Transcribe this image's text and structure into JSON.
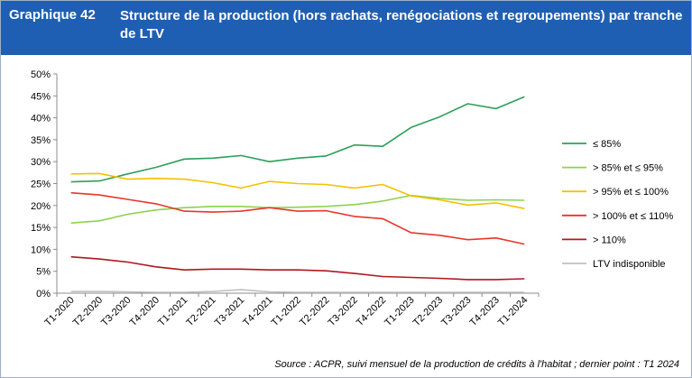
{
  "header": {
    "label": "Graphique 42",
    "title": "Structure de la production (hors rachats, renégociations et regroupements) par tranche de LTV"
  },
  "source": "Source : ACPR, suivi mensuel de la production de crédits à l'habitat ; dernier point : T1 2024",
  "chart_data": {
    "type": "line",
    "categories": [
      "T1-2020",
      "T2-2020",
      "T3-2020",
      "T4-2020",
      "T1-2021",
      "T2-2021",
      "T3-2021",
      "T4-2021",
      "T1-2022",
      "T2-2022",
      "T3-2022",
      "T4-2022",
      "T1-2023",
      "T2-2023",
      "T3-2023",
      "T4-2023",
      "T1-2024"
    ],
    "yticks": [
      "0%",
      "5%",
      "10%",
      "15%",
      "20%",
      "25%",
      "30%",
      "35%",
      "40%",
      "45%",
      "50%"
    ],
    "ylim": [
      0,
      50
    ],
    "grid": false,
    "legend_position": "right",
    "series": [
      {
        "name": "≤ 85%",
        "color": "#2ca05a",
        "values": [
          25.4,
          25.6,
          27.2,
          28.7,
          30.6,
          30.8,
          31.4,
          30.0,
          30.8,
          31.3,
          33.8,
          33.5,
          37.8,
          40.2,
          43.2,
          42.1,
          44.8
        ]
      },
      {
        "name": "> 85% et ≤ 95%",
        "color": "#8fd14f",
        "values": [
          16.0,
          16.5,
          18.0,
          19.0,
          19.5,
          19.8,
          19.8,
          19.5,
          19.6,
          19.8,
          20.2,
          21.0,
          22.3,
          21.6,
          21.2,
          21.3,
          21.2
        ]
      },
      {
        "name": "> 95% et ≤ 100%",
        "color": "#f2c200",
        "values": [
          27.2,
          27.3,
          26.0,
          26.2,
          26.0,
          25.2,
          24.0,
          25.5,
          25.0,
          24.8,
          24.0,
          24.8,
          22.2,
          21.3,
          20.1,
          20.6,
          19.3
        ]
      },
      {
        "name": "> 100% et ≤ 110%",
        "color": "#e8362a",
        "values": [
          22.9,
          22.4,
          21.4,
          20.4,
          18.7,
          18.5,
          18.7,
          19.5,
          18.7,
          18.8,
          17.5,
          17.0,
          13.8,
          13.2,
          12.2,
          12.6,
          11.2
        ]
      },
      {
        "name": "> 110%",
        "color": "#b01820",
        "values": [
          8.3,
          7.8,
          7.1,
          6.0,
          5.3,
          5.5,
          5.5,
          5.3,
          5.3,
          5.1,
          4.5,
          3.8,
          3.6,
          3.4,
          3.1,
          3.1,
          3.3
        ]
      },
      {
        "name": "LTV indisponible",
        "color": "#c0c0c0",
        "values": [
          0.4,
          0.4,
          0.3,
          0.2,
          0.2,
          0.4,
          0.8,
          0.3,
          0.2,
          0.2,
          0.2,
          0.2,
          0.2,
          0.2,
          0.2,
          0.2,
          0.2
        ]
      }
    ]
  }
}
